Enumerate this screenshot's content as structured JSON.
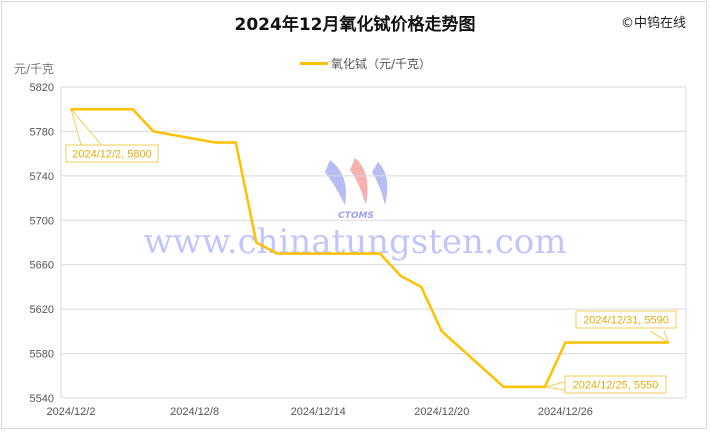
{
  "chart_data": {
    "type": "line",
    "title": "2024年12月氧化铽价格走势图",
    "copyright": "©中钨在线",
    "ylabel": "元/千克",
    "ylim": [
      5540,
      5820
    ],
    "yticks": [
      5820,
      5780,
      5740,
      5700,
      5660,
      5620,
      5580,
      5540
    ],
    "xticks": [
      "2024/12/2",
      "2024/12/8",
      "2024/12/14",
      "2024/12/20",
      "2024/12/26"
    ],
    "grid": true,
    "legend_position": "top",
    "color": "#FFC000",
    "series": [
      {
        "name": "氧化铽（元/千克）",
        "x": [
          "2024/12/2",
          "2024/12/3",
          "2024/12/4",
          "2024/12/5",
          "2024/12/6",
          "2024/12/9",
          "2024/12/10",
          "2024/12/11",
          "2024/12/12",
          "2024/12/13",
          "2024/12/16",
          "2024/12/17",
          "2024/12/18",
          "2024/12/19",
          "2024/12/20",
          "2024/12/23",
          "2024/12/24",
          "2024/12/25",
          "2024/12/26",
          "2024/12/27",
          "2024/12/30",
          "2024/12/31"
        ],
        "values": [
          5800,
          5800,
          5800,
          5800,
          5780,
          5770,
          5770,
          5680,
          5670,
          5670,
          5670,
          5670,
          5650,
          5640,
          5600,
          5550,
          5550,
          5550,
          5590,
          5590,
          5590,
          5590
        ]
      }
    ],
    "annotations": [
      {
        "text": "2024/12/2, 5800",
        "x": "2024/12/2",
        "y": 5800
      },
      {
        "text": "2024/12/25, 5550",
        "x": "2024/12/25",
        "y": 5550
      },
      {
        "text": "2024/12/31, 5590",
        "x": "2024/12/31",
        "y": 5590
      }
    ],
    "watermark": {
      "logo_text": "CTOMS",
      "url_text": "www.chinatungsten.com"
    }
  }
}
